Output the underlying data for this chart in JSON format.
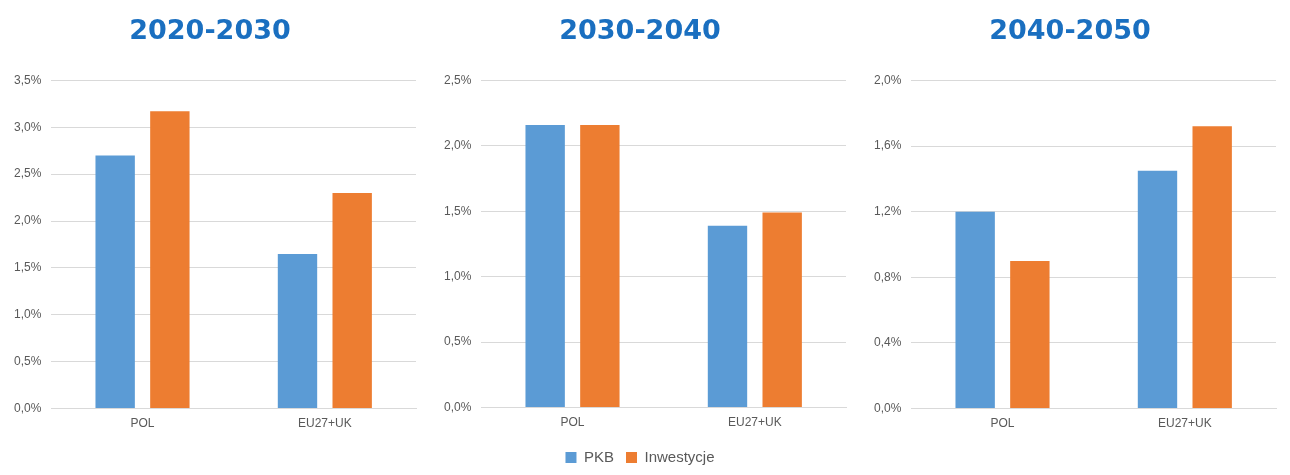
{
  "chart_data": [
    {
      "type": "bar",
      "title": "2020-2030",
      "categories": [
        "POL",
        "EU27+UK"
      ],
      "series": [
        {
          "color": "#5b9bd5",
          "values": [
            2.7,
            1.65
          ]
        },
        {
          "color": "#ed7d31",
          "values": [
            3.17,
            2.3
          ]
        }
      ],
      "ylim": [
        0,
        3.5
      ],
      "yticks": [
        {
          "value": 0,
          "label": "0,0%"
        },
        {
          "value": 0.5,
          "label": "0,5%"
        },
        {
          "value": 1,
          "label": "1,0%"
        },
        {
          "value": 1.5,
          "label": "1,5%"
        },
        {
          "value": 2,
          "label": "2,0%"
        },
        {
          "value": 2.5,
          "label": "2,5%"
        },
        {
          "value": 3,
          "label": "3,0%"
        },
        {
          "value": 3.5,
          "label": "3,5%"
        }
      ],
      "grid": "y",
      "legend": false
    },
    {
      "type": "bar",
      "title": "2030-2040",
      "categories": [
        "POL",
        "EU27+UK"
      ],
      "series": [
        {
          "name": "PKB",
          "color": "#5b9bd5",
          "values": [
            2.16,
            1.39
          ]
        },
        {
          "name": "Inwestycje",
          "color": "#ed7d31",
          "values": [
            2.16,
            1.49
          ]
        }
      ],
      "ylim": [
        0,
        2.5
      ],
      "yticks": [
        {
          "value": 0,
          "label": "0,0%"
        },
        {
          "value": 0.5,
          "label": "0,5%"
        },
        {
          "value": 1,
          "label": "1,0%"
        },
        {
          "value": 1.5,
          "label": "1,5%"
        },
        {
          "value": 2,
          "label": "2,0%"
        },
        {
          "value": 2.5,
          "label": "2,5%"
        }
      ],
      "grid": "y",
      "legend": "bottom"
    },
    {
      "type": "bar",
      "title": "2040-2050",
      "categories": [
        "POL",
        "EU27+UK"
      ],
      "series": [
        {
          "color": "#5b9bd5",
          "values": [
            1.2,
            1.45
          ]
        },
        {
          "color": "#ed7d31",
          "values": [
            0.9,
            1.72
          ]
        }
      ],
      "ylim": [
        0,
        2
      ],
      "yticks": [
        {
          "value": 0,
          "label": "0,0%"
        },
        {
          "value": 0.4,
          "label": "0,4%"
        },
        {
          "value": 0.8,
          "label": "0,8%"
        },
        {
          "value": 1.2,
          "label": "1,2%"
        },
        {
          "value": 1.6,
          "label": "1,6%"
        },
        {
          "value": 2,
          "label": "2,0%"
        }
      ],
      "grid": "y",
      "legend": false
    }
  ]
}
